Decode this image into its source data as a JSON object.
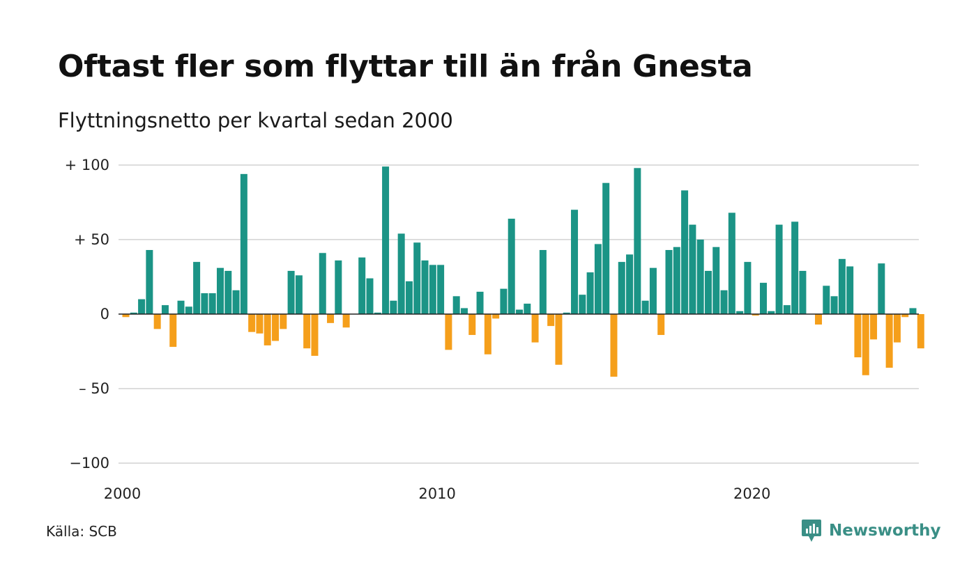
{
  "header": {
    "title": "Oftast fler som flyttar till än från Gnesta",
    "subtitle": "Flyttningsnetto per kvartal sedan 2000"
  },
  "footer": {
    "source": "Källa: SCB",
    "brand": "Newsworthy",
    "brand_icon": "newsworthy-logo-icon"
  },
  "colors": {
    "positive": "#1b9486",
    "negative": "#f59f1b",
    "grid": "#dddddd",
    "brand": "#3a8f86"
  },
  "chart_data": {
    "type": "bar",
    "title": "Oftast fler som flyttar till än från Gnesta",
    "subtitle": "Flyttningsnetto per kvartal sedan 2000",
    "xlabel": "",
    "ylabel": "",
    "ylim": [
      -100,
      100
    ],
    "y_ticks": [
      100,
      50,
      0,
      -50,
      -100
    ],
    "y_tick_labels": [
      "+ 100",
      "+  50",
      "0",
      "– 50",
      "−100"
    ],
    "x_ticks": [
      2000,
      2010,
      2020
    ],
    "x_tick_labels": [
      "2000",
      "2010",
      "2020"
    ],
    "grid": true,
    "legend": "none",
    "start_year": 2000,
    "periods_per_year": 4,
    "values": [
      -2,
      1,
      10,
      43,
      -10,
      6,
      -22,
      9,
      5,
      35,
      14,
      14,
      31,
      29,
      16,
      94,
      -12,
      -13,
      -21,
      -18,
      -10,
      29,
      26,
      -23,
      -28,
      41,
      -6,
      36,
      -9,
      0,
      38,
      24,
      1,
      99,
      9,
      54,
      22,
      48,
      36,
      33,
      33,
      -24,
      12,
      4,
      -14,
      15,
      -27,
      -3,
      17,
      64,
      3,
      7,
      -19,
      43,
      -8,
      -34,
      1,
      70,
      13,
      28,
      47,
      88,
      -42,
      35,
      40,
      98,
      9,
      31,
      -14,
      43,
      45,
      83,
      60,
      50,
      29,
      45,
      16,
      68,
      2,
      35,
      -1,
      21,
      2,
      60,
      6,
      62,
      29,
      0,
      -7,
      19,
      12,
      37,
      32,
      -29,
      -41,
      -17,
      34,
      -36,
      -19,
      -2,
      4,
      -23
    ]
  }
}
